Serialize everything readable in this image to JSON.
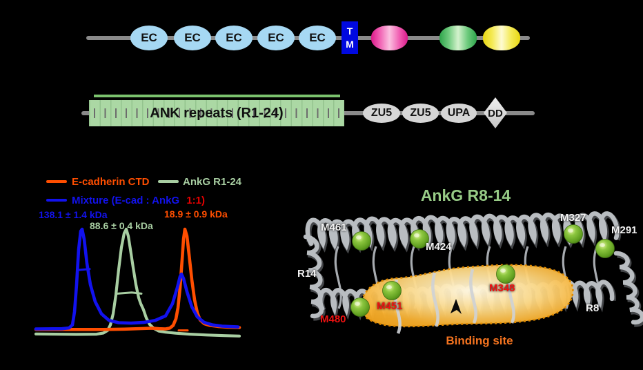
{
  "colors": {
    "background": "#000000",
    "backbone_gray": "#8a8a8a",
    "ec_blue": "#a6d8f3",
    "tm_blue": "#0009e0",
    "ank_box_green": "#abd8a4",
    "domain_gray": "#d6d6d6",
    "trace_orange": "#ff4e00",
    "trace_green": "#a8cea2",
    "trace_blue": "#1212ee",
    "ratio_red": "#e60000",
    "structure_title_green": "#97cb86",
    "binding_site_orange": "#f4731f",
    "residue_red": "#ee1111",
    "residue_white": "#f2f2f2",
    "sphere_green": "#7fbf3f",
    "blob_orange": "#f6ae2d"
  },
  "top_protein": {
    "ec_domains": [
      "EC",
      "EC",
      "EC",
      "EC",
      "EC"
    ],
    "tm": {
      "line1": "T",
      "line2": "M"
    }
  },
  "ankyrin_protein": {
    "ank_box_label": "ANK repeats (R1-24)",
    "zu5_1": "ZU5",
    "zu5_2": "ZU5",
    "upa": "UPA",
    "dd": "DD"
  },
  "chart": {
    "legend": {
      "ecad_label": "E-cadherin CTD",
      "ankg_label": "AnkG R1-24",
      "mixture_label": "Mixture (E-cad : AnkG",
      "mixture_ratio": "1:1)"
    },
    "mass_labels": {
      "mixture": "138.1 ± 1.4 kDa",
      "ankg": "88.6 ± 0.4 kDa",
      "ecad": "18.9 ± 0.9 kDa"
    },
    "chart_data": {
      "type": "line",
      "title": "",
      "xlabel": "",
      "ylabel": "",
      "axes_visible": false,
      "legend_position": "top-left",
      "series": [
        {
          "name": "AnkG R1-24",
          "color": "#a8cea2",
          "measured_mass": "88.6 ± 0.4 kDa",
          "stroke": 4.2,
          "points": [
            [
              2,
              -0.04
            ],
            [
              60,
              -0.044
            ],
            [
              90,
              -0.042
            ],
            [
              100,
              -0.03
            ],
            [
              106,
              -0.005
            ],
            [
              110,
              0.05
            ],
            [
              114,
              0.16
            ],
            [
              118,
              0.35
            ],
            [
              122,
              0.6
            ],
            [
              126,
              0.82
            ],
            [
              130,
              0.96
            ],
            [
              133,
              1.0
            ],
            [
              136,
              0.93
            ],
            [
              139,
              0.8
            ],
            [
              143,
              0.62
            ],
            [
              147,
              0.45
            ],
            [
              151,
              0.32
            ],
            [
              154,
              0.26
            ],
            [
              158,
              0.2
            ],
            [
              162,
              0.12
            ],
            [
              167,
              0.055
            ],
            [
              173,
              0.015
            ],
            [
              180,
              -0.01
            ],
            [
              190,
              -0.022
            ],
            [
              205,
              -0.032
            ],
            [
              225,
              -0.042
            ],
            [
              250,
              -0.05
            ],
            [
              275,
              -0.056
            ],
            [
              297,
              -0.06
            ]
          ]
        },
        {
          "name": "E-cadherin CTD",
          "color": "#ff4e00",
          "measured_mass": "18.9 ± 0.9 kDa",
          "stroke": 4.6,
          "points": [
            [
              2,
              0.005
            ],
            [
              100,
              0.005
            ],
            [
              130,
              0.008
            ],
            [
              155,
              0.014
            ],
            [
              170,
              0.018
            ],
            [
              180,
              0.012
            ],
            [
              190,
              0.01
            ],
            [
              196,
              0.018
            ],
            [
              201,
              0.045
            ],
            [
              205,
              0.11
            ],
            [
              208,
              0.22
            ],
            [
              211,
              0.42
            ],
            [
              214,
              0.7
            ],
            [
              216,
              0.9
            ],
            [
              218,
              1.0
            ],
            [
              221,
              0.93
            ],
            [
              224,
              0.75
            ],
            [
              228,
              0.5
            ],
            [
              232,
              0.3
            ],
            [
              236,
              0.17
            ],
            [
              240,
              0.1
            ],
            [
              246,
              0.062
            ],
            [
              254,
              0.045
            ],
            [
              266,
              0.035
            ],
            [
              280,
              0.028
            ],
            [
              297,
              0.024
            ]
          ]
        },
        {
          "name": "Mixture (E-cad : AnkG 1:1)",
          "color": "#1212ee",
          "measured_mass": "138.1 ± 1.4 kDa",
          "stroke": 4.6,
          "points": [
            [
              2,
              0.01
            ],
            [
              40,
              0.012
            ],
            [
              50,
              0.02
            ],
            [
              55,
              0.05
            ],
            [
              58,
              0.18
            ],
            [
              61,
              0.45
            ],
            [
              64,
              0.8
            ],
            [
              67,
              0.98
            ],
            [
              69,
              1.0
            ],
            [
              72,
              0.9
            ],
            [
              76,
              0.66
            ],
            [
              81,
              0.45
            ],
            [
              88,
              0.28
            ],
            [
              97,
              0.16
            ],
            [
              108,
              0.095
            ],
            [
              122,
              0.072
            ],
            [
              140,
              0.068
            ],
            [
              158,
              0.075
            ],
            [
              175,
              0.095
            ],
            [
              190,
              0.14
            ],
            [
              200,
              0.26
            ],
            [
              207,
              0.42
            ],
            [
              211,
              0.53
            ],
            [
              213,
              0.555
            ],
            [
              216,
              0.51
            ],
            [
              221,
              0.38
            ],
            [
              228,
              0.23
            ],
            [
              236,
              0.13
            ],
            [
              246,
              0.075
            ],
            [
              258,
              0.05
            ],
            [
              272,
              0.038
            ],
            [
              295,
              0.03
            ]
          ]
        }
      ],
      "mass_trace_segments": [
        {
          "color": "#1212ee",
          "points": [
            [
              64,
              0.595
            ],
            [
              80,
              0.605
            ]
          ]
        },
        {
          "color": "#a8cea2",
          "points": [
            [
              120,
              0.36
            ],
            [
              141,
              0.372
            ],
            [
              155,
              0.36
            ]
          ]
        },
        {
          "color": "#ff4e00",
          "points": [
            [
              209,
              -0.004
            ],
            [
              222,
              -0.004
            ]
          ]
        }
      ]
    }
  },
  "structure": {
    "title": "AnkG R8-14",
    "labels": [
      {
        "text": "M461",
        "color": "white"
      },
      {
        "text": "M424",
        "color": "white"
      },
      {
        "text": "M327",
        "color": "white"
      },
      {
        "text": "M291",
        "color": "white"
      },
      {
        "text": "R14",
        "color": "white"
      },
      {
        "text": "R8",
        "color": "white"
      },
      {
        "text": "M348",
        "color": "red"
      },
      {
        "text": "M451",
        "color": "red"
      },
      {
        "text": "M480",
        "color": "red"
      }
    ],
    "binding_site_label": "Binding site"
  }
}
